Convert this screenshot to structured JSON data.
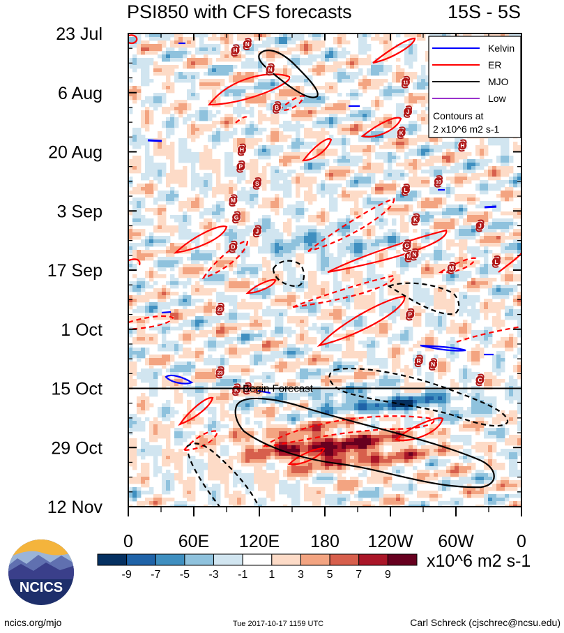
{
  "chart_data": {
    "type": "heatmap",
    "title": "PSI850 with CFS forecasts",
    "lat_band": "15S - 5S",
    "x_ticks": [
      {
        "label": "0",
        "lon": 0
      },
      {
        "label": "60E",
        "lon": 60
      },
      {
        "label": "120E",
        "lon": 120
      },
      {
        "label": "180",
        "lon": 180
      },
      {
        "label": "120W",
        "lon": 240
      },
      {
        "label": "60W",
        "lon": 300
      },
      {
        "label": "0",
        "lon": 360
      }
    ],
    "xlim": [
      0,
      360
    ],
    "y_ticks": [
      {
        "label": "23 Jul",
        "day": 0
      },
      {
        "label": "6 Aug",
        "day": 14
      },
      {
        "label": "20 Aug",
        "day": 28
      },
      {
        "label": "3 Sep",
        "day": 42
      },
      {
        "label": "17 Sep",
        "day": 56
      },
      {
        "label": "1 Oct",
        "day": 70
      },
      {
        "label": "15 Oct",
        "day": 84
      },
      {
        "label": "29 Oct",
        "day": 98
      },
      {
        "label": "12 Nov",
        "day": 112
      }
    ],
    "ylim_days": [
      0,
      112
    ],
    "forecast_start": {
      "label": "Begin Forecast",
      "day": 84
    },
    "colorbar": {
      "ticks": [
        "-9",
        "-7",
        "-5",
        "-3",
        "-1",
        "1",
        "3",
        "5",
        "7",
        "9"
      ],
      "colors": [
        "#053061",
        "#1f63a8",
        "#3f8fc0",
        "#8fc2dd",
        "#d1e5f0",
        "#ffffff",
        "#fddbc7",
        "#f3a481",
        "#d75f4c",
        "#aa1628",
        "#67001f"
      ],
      "units": "x10^6 m2 s-1"
    },
    "legend": {
      "items": [
        {
          "label": "Kelvin",
          "color": "#0000ff"
        },
        {
          "label": "ER",
          "color": "#ff0000"
        },
        {
          "label": "MJO",
          "color": "#000000"
        },
        {
          "label": "Low",
          "color": "#9933cc"
        }
      ],
      "note_line1": "Contours at",
      "note_line2": "2 x10^6 m2 s-1"
    },
    "storms": [
      {
        "letter": "H",
        "lon": 98,
        "day": 4
      },
      {
        "letter": "N",
        "lon": 109,
        "day": 2.5
      },
      {
        "letter": "N",
        "lon": 130,
        "day": 8.5
      },
      {
        "letter": "B",
        "lon": 136,
        "day": 17.5
      },
      {
        "letter": "H",
        "lon": 104,
        "day": 27.5
      },
      {
        "letter": "P",
        "lon": 103,
        "day": 31.5
      },
      {
        "letter": "S",
        "lon": 118,
        "day": 35.5
      },
      {
        "letter": "M",
        "lon": 96,
        "day": 39.5
      },
      {
        "letter": "G",
        "lon": 99,
        "day": 43.5
      },
      {
        "letter": "J",
        "lon": 118,
        "day": 46.8
      },
      {
        "letter": "D",
        "lon": 96,
        "day": 50.5
      },
      {
        "letter": "11",
        "lon": 254,
        "day": 11.5
      },
      {
        "letter": "J",
        "lon": 256,
        "day": 18.5
      },
      {
        "letter": "K",
        "lon": 250,
        "day": 23.5
      },
      {
        "letter": "L",
        "lon": 254,
        "day": 37
      },
      {
        "letter": "K",
        "lon": 263,
        "day": 44
      },
      {
        "letter": "G",
        "lon": 255,
        "day": 50.2
      },
      {
        "letter": "N",
        "lon": 257,
        "day": 52.7
      },
      {
        "letter": "N",
        "lon": 262,
        "day": 52.3
      },
      {
        "letter": "P",
        "lon": 258,
        "day": 66.5
      },
      {
        "letter": "R",
        "lon": 266,
        "day": 77.5
      },
      {
        "letter": "N",
        "lon": 279,
        "day": 78.3
      },
      {
        "letter": "10",
        "lon": 284,
        "day": 35
      },
      {
        "letter": "M",
        "lon": 296,
        "day": 55.5
      },
      {
        "letter": "J",
        "lon": 322,
        "day": 45.5
      },
      {
        "letter": "L",
        "lon": 337,
        "day": 54
      },
      {
        "letter": "H",
        "lon": 306,
        "day": 26.5
      },
      {
        "letter": "C",
        "lon": 322,
        "day": 82
      },
      {
        "letter": "23",
        "lon": 84,
        "day": 65.2
      },
      {
        "letter": "23",
        "lon": 84,
        "day": 80.2
      },
      {
        "letter": "K",
        "lon": 99,
        "day": 84.3
      },
      {
        "letter": "25",
        "lon": 109,
        "day": 84
      }
    ]
  },
  "footer": {
    "left": "ncics.org/mjo",
    "center": "Tue 2017-10-17 1159 UTC",
    "right": "Carl Schreck (cjschrec@ncsu.edu)"
  },
  "logo_text": "NCICS"
}
